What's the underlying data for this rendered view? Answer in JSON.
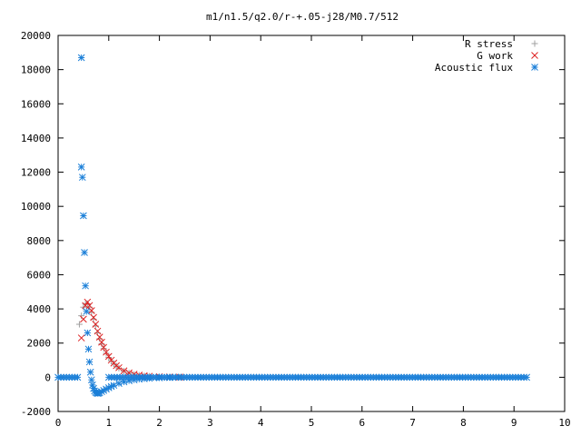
{
  "chart_data": {
    "type": "scatter",
    "title": "m1/n1.5/q2.0/r-+.05-j28/M0.7/512",
    "xlabel": "",
    "ylabel": "",
    "xlim": [
      0,
      10
    ],
    "ylim": [
      -2000,
      20000
    ],
    "xticks": [
      "0",
      "1",
      "2",
      "3",
      "4",
      "5",
      "6",
      "7",
      "8",
      "9",
      "10"
    ],
    "yticks": [
      "-2000",
      "0",
      "2000",
      "4000",
      "6000",
      "8000",
      "10000",
      "12000",
      "14000",
      "16000",
      "18000",
      "20000"
    ],
    "grid": false,
    "legend_position": "top-right",
    "series": [
      {
        "name": "R stress",
        "marker": "plus",
        "color": "#a0a0a0",
        "points": [
          [
            0.42,
            3100
          ],
          [
            0.46,
            3600
          ],
          [
            0.5,
            4100
          ],
          [
            0.54,
            4300
          ],
          [
            0.58,
            4300
          ],
          [
            0.62,
            4100
          ],
          [
            0.66,
            3800
          ],
          [
            0.7,
            3400
          ],
          [
            0.74,
            3000
          ],
          [
            0.78,
            2600
          ],
          [
            0.82,
            2250
          ],
          [
            0.86,
            1950
          ],
          [
            0.9,
            1680
          ],
          [
            0.95,
            1400
          ],
          [
            1.0,
            1160
          ],
          [
            1.05,
            960
          ],
          [
            1.1,
            790
          ],
          [
            1.15,
            650
          ],
          [
            1.2,
            530
          ],
          [
            1.3,
            360
          ],
          [
            1.4,
            250
          ],
          [
            1.5,
            170
          ],
          [
            1.6,
            120
          ],
          [
            1.7,
            85
          ],
          [
            1.8,
            60
          ],
          [
            2.0,
            35
          ],
          [
            2.2,
            20
          ],
          [
            2.4,
            12
          ]
        ]
      },
      {
        "name": "G work",
        "marker": "cross",
        "color": "#dd2222",
        "points": [
          [
            0.46,
            2300
          ],
          [
            0.5,
            3400
          ],
          [
            0.54,
            4200
          ],
          [
            0.58,
            4400
          ],
          [
            0.62,
            4200
          ],
          [
            0.66,
            3900
          ],
          [
            0.7,
            3500
          ],
          [
            0.74,
            3100
          ],
          [
            0.78,
            2700
          ],
          [
            0.82,
            2350
          ],
          [
            0.86,
            2050
          ],
          [
            0.9,
            1750
          ],
          [
            0.95,
            1470
          ],
          [
            1.0,
            1220
          ],
          [
            1.05,
            1000
          ],
          [
            1.1,
            830
          ],
          [
            1.15,
            680
          ],
          [
            1.2,
            560
          ],
          [
            1.3,
            380
          ],
          [
            1.4,
            260
          ],
          [
            1.5,
            180
          ],
          [
            1.6,
            125
          ],
          [
            1.7,
            90
          ],
          [
            1.8,
            62
          ],
          [
            2.0,
            36
          ],
          [
            2.2,
            20
          ],
          [
            2.4,
            12
          ]
        ]
      },
      {
        "name": "Acoustic flux",
        "marker": "star",
        "color": "#1a7fd8",
        "points": [
          [
            0.46,
            18700
          ],
          [
            0.46,
            12300
          ],
          [
            0.48,
            11700
          ],
          [
            0.5,
            9450
          ],
          [
            0.52,
            7300
          ],
          [
            0.54,
            5350
          ],
          [
            0.56,
            3850
          ],
          [
            0.58,
            2600
          ],
          [
            0.6,
            1650
          ],
          [
            0.62,
            900
          ],
          [
            0.64,
            300
          ],
          [
            0.66,
            -150
          ],
          [
            0.68,
            -450
          ],
          [
            0.7,
            -650
          ],
          [
            0.72,
            -800
          ],
          [
            0.74,
            -880
          ],
          [
            0.76,
            -920
          ],
          [
            0.78,
            -940
          ],
          [
            0.8,
            -930
          ],
          [
            0.82,
            -900
          ],
          [
            0.86,
            -840
          ],
          [
            0.9,
            -770
          ],
          [
            0.95,
            -690
          ],
          [
            1.0,
            -610
          ],
          [
            1.05,
            -540
          ],
          [
            1.1,
            -470
          ],
          [
            1.2,
            -360
          ],
          [
            1.3,
            -270
          ],
          [
            1.4,
            -200
          ],
          [
            1.5,
            -150
          ],
          [
            1.6,
            -110
          ],
          [
            1.7,
            -80
          ],
          [
            1.8,
            -55
          ],
          [
            2.0,
            -30
          ],
          [
            2.2,
            -15
          ]
        ],
        "baseline": {
          "y": 0,
          "x_ranges": [
            [
              0.0,
              0.42
            ],
            [
              1.0,
              9.25
            ]
          ],
          "spacing": 0.055
        }
      }
    ]
  }
}
